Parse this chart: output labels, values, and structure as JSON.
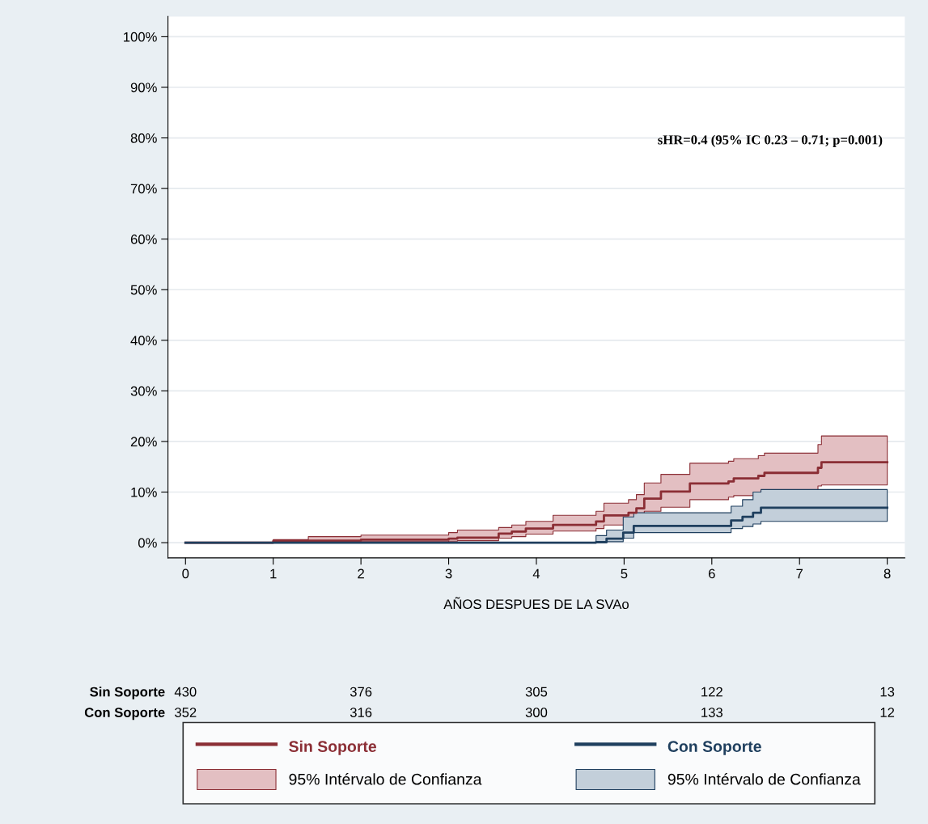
{
  "chart_data": {
    "type": "step",
    "xlabel": "AÑOS DESPUES DE LA SVAo",
    "xlim": [
      -0.2,
      8.2
    ],
    "xticks": [
      0,
      1,
      2,
      3,
      4,
      5,
      6,
      7,
      8
    ],
    "ylim": [
      -3,
      104
    ],
    "yticks": [
      {
        "value": 0,
        "label": "0%"
      },
      {
        "value": 10,
        "label": "10%"
      },
      {
        "value": 20,
        "label": "20%"
      },
      {
        "value": 30,
        "label": "30%"
      },
      {
        "value": 40,
        "label": "40%"
      },
      {
        "value": 50,
        "label": "50%"
      },
      {
        "value": 60,
        "label": "60%"
      },
      {
        "value": 70,
        "label": "70%"
      },
      {
        "value": 80,
        "label": "80%"
      },
      {
        "value": 90,
        "label": "90%"
      },
      {
        "value": 100,
        "label": "100%"
      }
    ],
    "grid": "y",
    "legend": "bottom",
    "series": [
      {
        "name": "Sin Soporte",
        "color": "#8b2e35",
        "x": [
          0,
          1,
          1.4,
          2,
          3,
          3.1,
          3.57,
          3.72,
          3.88,
          4.19,
          4.68,
          4.77,
          5.05,
          5.14,
          5.23,
          5.42,
          5.75,
          6.19,
          6.25,
          6.53,
          6.6,
          7.21,
          7.25,
          8
        ],
        "values": [
          0,
          0.3,
          0.4,
          0.6,
          0.8,
          1.0,
          1.8,
          2.2,
          2.8,
          3.5,
          4.2,
          5.4,
          5.9,
          6.8,
          8.7,
          10.1,
          11.7,
          12.1,
          12.7,
          13.2,
          13.8,
          14.8,
          15.9,
          15.9
        ],
        "lower": [
          0,
          0.1,
          0.1,
          0.2,
          0.3,
          0.4,
          0.9,
          1.2,
          1.7,
          2.3,
          2.8,
          3.5,
          3.9,
          5.1,
          6.2,
          7.0,
          8.5,
          9.0,
          9.3,
          10.0,
          10.4,
          11.2,
          11.4,
          11.4
        ],
        "upper": [
          0,
          0.6,
          1.2,
          1.5,
          2.0,
          2.5,
          3.0,
          3.5,
          4.2,
          5.4,
          6.2,
          7.8,
          8.5,
          9.5,
          11.8,
          13.5,
          15.7,
          16.1,
          16.6,
          17.2,
          17.7,
          19.4,
          21.1,
          21.1
        ]
      },
      {
        "name": "Con Soporte",
        "color": "#1f3f5e",
        "x": [
          0,
          4.68,
          4.8,
          4.99,
          5.11,
          6.22,
          6.35,
          6.47,
          6.56,
          8
        ],
        "values": [
          0,
          0.1,
          0.8,
          2.0,
          3.3,
          4.4,
          5.1,
          5.9,
          6.9,
          6.9
        ],
        "lower": [
          0,
          0,
          0.2,
          0.9,
          2.0,
          2.8,
          3.2,
          3.7,
          4.2,
          4.2
        ],
        "upper": [
          0,
          1.4,
          2.5,
          5.1,
          5.9,
          7.2,
          8.5,
          10.0,
          10.5,
          10.5
        ]
      }
    ],
    "annotations": [
      "sHR=0.4 (95% IC 0.23 – 0.71; p=0.001)",
      "95% Intérvalo de Confianza",
      "95% Intérvalo de Confianza",
      "Sin Soporte",
      "430",
      "376",
      "305",
      "122",
      "13",
      "Con Soporte",
      "352",
      "316",
      "300",
      "133",
      "12"
    ]
  }
}
